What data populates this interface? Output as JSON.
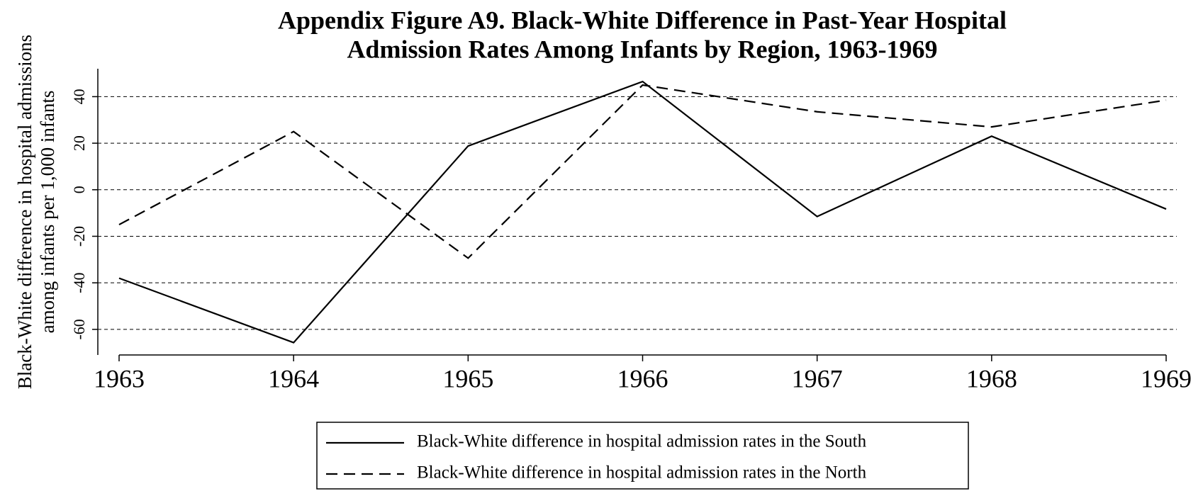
{
  "chart_data": {
    "type": "line",
    "title": [
      "Appendix Figure A9. Black-White Difference in Past-Year Hospital",
      "Admission Rates Among Infants by Region, 1963-1969"
    ],
    "y_label": [
      "Black-White difference in hospital admissions",
      "among infants per 1,000 infants"
    ],
    "x": [
      1963,
      1964,
      1965,
      1966,
      1967,
      1968,
      1969
    ],
    "xlim": [
      1963,
      1969
    ],
    "xticks": [
      1963,
      1964,
      1965,
      1966,
      1967,
      1968,
      1969
    ],
    "ylim": [
      -71,
      52
    ],
    "yticks": [
      -60,
      -40,
      -20,
      0,
      20,
      40
    ],
    "grid": true,
    "legend": "bottom",
    "series": [
      {
        "name": "Black-White difference in hospital admission rates in the South",
        "color": "#000000",
        "dash": "solid",
        "values": [
          -38,
          -65.7,
          18.8,
          46.5,
          -11.5,
          23,
          -8.3
        ]
      },
      {
        "name": "Black-White difference in hospital admission rates in the North",
        "color": "#000000",
        "dash": "dashed",
        "values": [
          -15,
          25,
          -29.4,
          45,
          33.5,
          27,
          38.5
        ]
      }
    ]
  }
}
